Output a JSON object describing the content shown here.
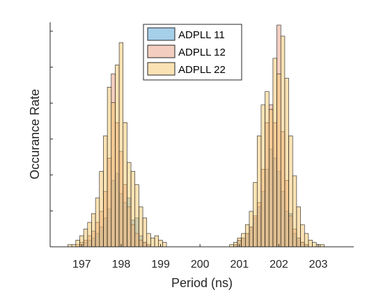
{
  "chart_data": {
    "type": "histogram",
    "xlabel": "Period (ns)",
    "ylabel": "Occurance Rate",
    "xlim": [
      196.2,
      203.9
    ],
    "ylim": [
      0,
      1.0
    ],
    "xticks": [
      197,
      198,
      199,
      200,
      201,
      202,
      203
    ],
    "xtick_labels": [
      "197",
      "198",
      "199",
      "200",
      "201",
      "202",
      "203"
    ],
    "yticks_shown_unlabeled": true,
    "grid": false,
    "legend_position": "top-center",
    "bin_width": 0.1,
    "series": [
      {
        "name": "ADPLL 11",
        "color": "#4d9fd6",
        "bins": [
          [
            197.0,
            0.01
          ],
          [
            197.1,
            0.02
          ],
          [
            197.2,
            0.03
          ],
          [
            197.3,
            0.04
          ],
          [
            197.4,
            0.06
          ],
          [
            197.5,
            0.09
          ],
          [
            197.6,
            0.13
          ],
          [
            197.7,
            0.17
          ],
          [
            197.8,
            0.3
          ],
          [
            197.9,
            0.33
          ],
          [
            198.0,
            0.24
          ],
          [
            198.1,
            0.2
          ],
          [
            198.2,
            0.22
          ],
          [
            198.3,
            0.12
          ],
          [
            198.4,
            0.13
          ],
          [
            198.5,
            0.05
          ],
          [
            198.6,
            0.02
          ],
          [
            198.7,
            0.01
          ],
          [
            200.9,
            0.01
          ],
          [
            201.0,
            0.03
          ],
          [
            201.1,
            0.04
          ],
          [
            201.2,
            0.06
          ],
          [
            201.3,
            0.09
          ],
          [
            201.4,
            0.13
          ],
          [
            201.5,
            0.18
          ],
          [
            201.6,
            0.25
          ],
          [
            201.7,
            0.35
          ],
          [
            201.8,
            0.44
          ],
          [
            201.9,
            0.4
          ],
          [
            202.0,
            0.34
          ],
          [
            202.1,
            0.25
          ],
          [
            202.2,
            0.16
          ],
          [
            202.3,
            0.15
          ],
          [
            202.4,
            0.06
          ],
          [
            202.5,
            0.04
          ],
          [
            202.6,
            0.02
          ],
          [
            202.7,
            0.01
          ]
        ]
      },
      {
        "name": "ADPLL 12",
        "color": "#e89b82",
        "bins": [
          [
            196.9,
            0.01
          ],
          [
            197.0,
            0.02
          ],
          [
            197.1,
            0.03
          ],
          [
            197.2,
            0.05
          ],
          [
            197.3,
            0.07
          ],
          [
            197.4,
            0.11
          ],
          [
            197.5,
            0.16
          ],
          [
            197.6,
            0.25
          ],
          [
            197.7,
            0.4
          ],
          [
            197.8,
            0.78
          ],
          [
            197.9,
            0.56
          ],
          [
            198.0,
            0.43
          ],
          [
            198.1,
            0.28
          ],
          [
            198.2,
            0.18
          ],
          [
            198.3,
            0.1
          ],
          [
            198.4,
            0.06
          ],
          [
            198.5,
            0.03
          ],
          [
            198.6,
            0.02
          ],
          [
            198.7,
            0.01
          ],
          [
            200.9,
            0.01
          ],
          [
            201.0,
            0.03
          ],
          [
            201.1,
            0.04
          ],
          [
            201.2,
            0.06
          ],
          [
            201.3,
            0.09
          ],
          [
            201.4,
            0.14
          ],
          [
            201.5,
            0.2
          ],
          [
            201.6,
            0.35
          ],
          [
            201.7,
            0.56
          ],
          [
            201.8,
            0.64
          ],
          [
            201.9,
            0.56
          ],
          [
            202.0,
            1.0
          ],
          [
            202.1,
            0.52
          ],
          [
            202.2,
            0.3
          ],
          [
            202.3,
            0.14
          ],
          [
            202.4,
            0.08
          ],
          [
            202.5,
            0.04
          ],
          [
            202.6,
            0.02
          ],
          [
            202.7,
            0.01
          ]
        ]
      },
      {
        "name": "ADPLL 22",
        "color": "#f5c56a",
        "bins": [
          [
            196.7,
            0.01
          ],
          [
            196.8,
            0.01
          ],
          [
            196.9,
            0.03
          ],
          [
            197.0,
            0.05
          ],
          [
            197.1,
            0.08
          ],
          [
            197.2,
            0.11
          ],
          [
            197.3,
            0.15
          ],
          [
            197.4,
            0.22
          ],
          [
            197.5,
            0.34
          ],
          [
            197.6,
            0.5
          ],
          [
            197.7,
            0.72
          ],
          [
            197.8,
            0.65
          ],
          [
            197.9,
            0.82
          ],
          [
            198.0,
            0.92
          ],
          [
            198.1,
            0.56
          ],
          [
            198.2,
            0.38
          ],
          [
            198.3,
            0.34
          ],
          [
            198.4,
            0.28
          ],
          [
            198.5,
            0.18
          ],
          [
            198.6,
            0.13
          ],
          [
            198.7,
            0.06
          ],
          [
            198.8,
            0.04
          ],
          [
            198.9,
            0.05
          ],
          [
            199.0,
            0.03
          ],
          [
            199.1,
            0.02
          ],
          [
            200.8,
            0.01
          ],
          [
            200.9,
            0.02
          ],
          [
            201.0,
            0.04
          ],
          [
            201.1,
            0.06
          ],
          [
            201.2,
            0.1
          ],
          [
            201.3,
            0.16
          ],
          [
            201.4,
            0.29
          ],
          [
            201.5,
            0.5
          ],
          [
            201.6,
            0.64
          ],
          [
            201.7,
            0.7
          ],
          [
            201.8,
            0.62
          ],
          [
            201.9,
            0.85
          ],
          [
            202.0,
            0.78
          ],
          [
            202.1,
            0.95
          ],
          [
            202.2,
            0.76
          ],
          [
            202.3,
            0.5
          ],
          [
            202.4,
            0.32
          ],
          [
            202.5,
            0.18
          ],
          [
            202.6,
            0.1
          ],
          [
            202.7,
            0.06
          ],
          [
            202.8,
            0.03
          ],
          [
            202.9,
            0.02
          ],
          [
            203.0,
            0.01
          ],
          [
            203.1,
            0.01
          ]
        ]
      }
    ]
  }
}
